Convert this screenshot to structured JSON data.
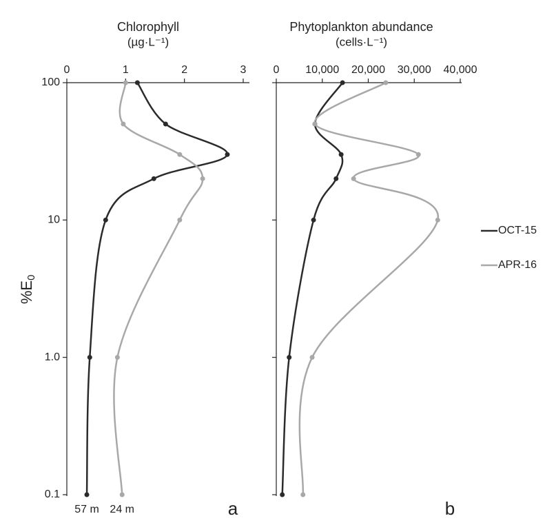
{
  "chart_data": [
    {
      "type": "line",
      "title": "Chlorophyll",
      "unit": "(µg·L⁻¹)",
      "panel_label": "a",
      "y_label": "%E",
      "y_label_sub": "0",
      "y_log": true,
      "legend": "right",
      "xlim": [
        0,
        3
      ],
      "xticks": [
        0,
        1,
        2,
        3
      ],
      "ylim": [
        0.1,
        100
      ],
      "yticks": [
        100,
        10,
        {
          "value": 1,
          "label": "1.0"
        },
        0.1
      ],
      "series": [
        {
          "name": "OCT-15",
          "color": "#2b2b2b",
          "end_label": "57 m",
          "x": [
            1.2,
            1.68,
            2.73,
            1.48,
            0.66,
            0.39,
            0.34
          ],
          "y": [
            100,
            50,
            30,
            20,
            10,
            1,
            0.1
          ]
        },
        {
          "name": "APR-16",
          "color": "#a8a8a8",
          "end_label": "24 m",
          "x": [
            1.0,
            0.96,
            1.92,
            2.31,
            1.92,
            0.86,
            0.94
          ],
          "y": [
            100,
            50,
            30,
            20,
            10,
            1,
            0.1
          ]
        }
      ]
    },
    {
      "type": "line",
      "title": "Phytoplankton abundance",
      "unit": "(cells·L⁻¹)",
      "panel_label": "b",
      "y_log": true,
      "xlim": [
        0,
        40000
      ],
      "xticks": [
        0,
        {
          "value": 10000,
          "label": "10,000"
        },
        {
          "value": 20000,
          "label": "20,000"
        },
        {
          "value": 30000,
          "label": "30,000"
        },
        {
          "value": 40000,
          "label": "40,000"
        }
      ],
      "ylim": [
        0.1,
        100
      ],
      "series": [
        {
          "color": "#2b2b2b",
          "x": [
            14400,
            8400,
            14100,
            13000,
            8100,
            2800,
            1300
          ],
          "y": [
            100,
            50,
            30,
            20,
            10,
            1,
            0.1
          ]
        },
        {
          "color": "#a8a8a8",
          "x": [
            23800,
            8400,
            30900,
            16800,
            35100,
            7800,
            5800
          ],
          "y": [
            100,
            50,
            30,
            20,
            10,
            1,
            0.1
          ]
        }
      ]
    }
  ]
}
